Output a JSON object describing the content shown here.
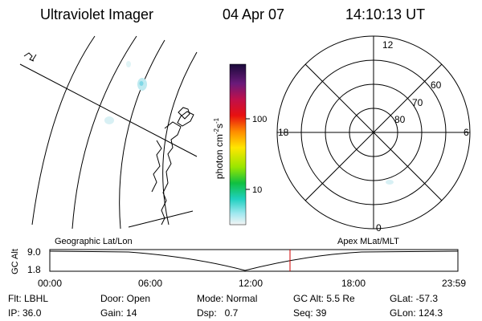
{
  "header": {
    "title": "Ultraviolet Imager",
    "date": "04 Apr 07",
    "time": "14:10:13 UT"
  },
  "colorbar": {
    "label": [
      "photon cm",
      "-2",
      "s",
      "-1"
    ],
    "ticks": [
      "100",
      "10"
    ]
  },
  "polar": {
    "mlt_labels": [
      "12",
      "6",
      "18",
      "0"
    ],
    "mlat_labels": [
      "60",
      "70",
      "80"
    ]
  },
  "altitude": {
    "axis_label": "GC Alt",
    "yticks": [
      "9.0",
      "1.8"
    ],
    "left_title": "Geographic Lat/Lon",
    "right_title": "Apex MLat/MLT",
    "xticks": [
      "00:00",
      "06:00",
      "12:00",
      "18:00",
      "23:59"
    ]
  },
  "info": {
    "rows": [
      [
        "Flt: LBHL",
        "Door: Open",
        "Mode: Normal",
        "GC Alt: 5.5 Re",
        "GLat: -57.3"
      ],
      [
        "IP: 36.0",
        "Gain: 14",
        "Dsp:   0.7",
        "Seq: 39",
        "GLon: 124.3"
      ]
    ]
  }
}
